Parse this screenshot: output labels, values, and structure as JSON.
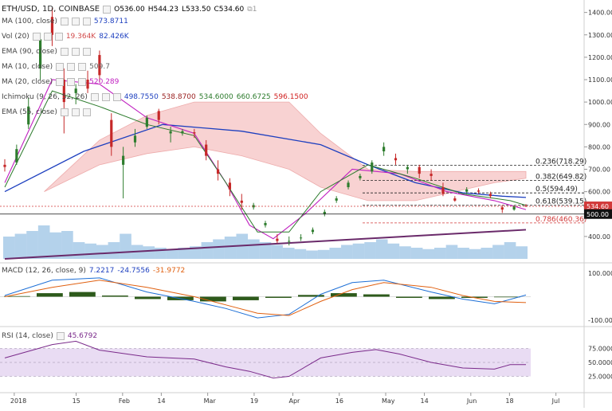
{
  "header": {
    "symbol": "ETH/USD, 1D, COINBASE",
    "open": "O536.00",
    "high": "H544.23",
    "low": "L533.50",
    "close": "C534.60"
  },
  "indicators": [
    {
      "label": "MA (100, close)",
      "values": [
        "573.8711"
      ],
      "colors": [
        "#1d3fbf"
      ]
    },
    {
      "label": "Vol (20)",
      "values": [
        "19.364K",
        "82.426K"
      ],
      "colors": [
        "#d24b4b",
        "#1d3fbf"
      ]
    },
    {
      "label": "EMA (90, close)",
      "values": [],
      "colors": []
    },
    {
      "label": "MA (10, close)",
      "values": [
        "509.7"
      ],
      "colors": [
        "#666666"
      ]
    },
    {
      "label": "MA (20, close)",
      "values": [
        "520.289"
      ],
      "colors": [
        "#c020c0"
      ]
    },
    {
      "label": "Ichimoku (9, 26, 52, 26)",
      "values": [
        "498.7550",
        "538.8700",
        "534.6000",
        "660.6725",
        "596.1500"
      ],
      "colors": [
        "#1d3fbf",
        "#9a2020",
        "#2b7a2b",
        "#2b7a2b",
        "#d02020"
      ]
    },
    {
      "label": "EMA (55, close)",
      "values": [],
      "colors": []
    }
  ],
  "macd": {
    "label": "MACD (12, 26, close, 9)",
    "values": [
      "7.2217",
      "-24.7556",
      "-31.9772"
    ],
    "colors": [
      "#1d3fbf",
      "#1d3fbf",
      "#e06010"
    ]
  },
  "rsi": {
    "label": "RSI (14, close)",
    "value": "45.6792",
    "color": "#7a2a8a"
  },
  "price_axis": [
    "1400.00",
    "1300.00",
    "1200.00",
    "1100.00",
    "1000.00",
    "900.00",
    "800.00",
    "700.00",
    "600.00",
    "500.00",
    "400.00"
  ],
  "macd_axis": [
    "100.0000",
    "-100.0000"
  ],
  "rsi_axis": [
    "75.0000",
    "50.0000",
    "25.0000"
  ],
  "time_axis": [
    "2018",
    "15",
    "Feb",
    "14",
    "Mar",
    "19",
    "Apr",
    "16",
    "May",
    "14",
    "Jun",
    "18",
    "Jul"
  ],
  "price_tags": [
    {
      "text": "534.60",
      "bg": "#d23a3a"
    },
    {
      "text": "500.00",
      "bg": "#111111"
    }
  ],
  "fib_labels": [
    {
      "text": "0.236(718.29)",
      "value": 718.29
    },
    {
      "text": "0.382(649.82)",
      "value": 649.82
    },
    {
      "text": "0.5(594.49)",
      "value": 594.49
    },
    {
      "text": "0.618(539.15)",
      "value": 539.15
    },
    {
      "text": "0.786(460.36)",
      "value": 460.36,
      "color": "#d23a3a"
    }
  ],
  "colors": {
    "bull": "#2e7d2e",
    "bear": "#c62828",
    "cloud_bull": "#b9e6b9",
    "cloud_bear": "#f6c4c4",
    "ma100": "#1d3fbf",
    "ma20": "#c020c0",
    "kijun": "#2b7a2b",
    "rsi": "#7a2a8a",
    "macd": "#1d6fd6",
    "signal": "#e06010",
    "hist": "#2d5a1b",
    "vol": "#6aa6d8"
  },
  "chart_data": {
    "type": "candlestick",
    "x_range": [
      "2017-12-28",
      "2018-06-19"
    ],
    "ylim": [
      300,
      1420
    ],
    "candles": [
      {
        "date": "2017-12-28",
        "o": 720,
        "h": 745,
        "l": 690,
        "c": 710
      },
      {
        "date": "2018-01-01",
        "o": 730,
        "h": 810,
        "l": 720,
        "c": 790
      },
      {
        "date": "2018-01-05",
        "o": 900,
        "h": 1020,
        "l": 880,
        "c": 980
      },
      {
        "date": "2018-01-09",
        "o": 1150,
        "h": 1310,
        "l": 1100,
        "c": 1280
      },
      {
        "date": "2018-01-13",
        "o": 1380,
        "h": 1420,
        "l": 1250,
        "c": 1300
      },
      {
        "date": "2018-01-17",
        "o": 1100,
        "h": 1150,
        "l": 860,
        "c": 1000
      },
      {
        "date": "2018-01-21",
        "o": 1040,
        "h": 1080,
        "l": 990,
        "c": 1060
      },
      {
        "date": "2018-01-25",
        "o": 1100,
        "h": 1140,
        "l": 1040,
        "c": 1060
      },
      {
        "date": "2018-01-29",
        "o": 1210,
        "h": 1230,
        "l": 1090,
        "c": 1120
      },
      {
        "date": "2018-02-02",
        "o": 920,
        "h": 950,
        "l": 760,
        "c": 800
      },
      {
        "date": "2018-02-06",
        "o": 720,
        "h": 800,
        "l": 570,
        "c": 760
      },
      {
        "date": "2018-02-10",
        "o": 820,
        "h": 880,
        "l": 800,
        "c": 850
      },
      {
        "date": "2018-02-14",
        "o": 890,
        "h": 940,
        "l": 880,
        "c": 930
      },
      {
        "date": "2018-02-18",
        "o": 960,
        "h": 970,
        "l": 900,
        "c": 920
      },
      {
        "date": "2018-02-22",
        "o": 860,
        "h": 890,
        "l": 820,
        "c": 870
      },
      {
        "date": "2018-02-26",
        "o": 860,
        "h": 880,
        "l": 850,
        "c": 870
      },
      {
        "date": "2018-03-02",
        "o": 865,
        "h": 880,
        "l": 840,
        "c": 860
      },
      {
        "date": "2018-03-06",
        "o": 810,
        "h": 830,
        "l": 740,
        "c": 760
      },
      {
        "date": "2018-03-10",
        "o": 700,
        "h": 740,
        "l": 650,
        "c": 680
      },
      {
        "date": "2018-03-14",
        "o": 640,
        "h": 660,
        "l": 580,
        "c": 610
      },
      {
        "date": "2018-03-18",
        "o": 560,
        "h": 590,
        "l": 520,
        "c": 550
      },
      {
        "date": "2018-03-22",
        "o": 530,
        "h": 550,
        "l": 520,
        "c": 540
      },
      {
        "date": "2018-03-26",
        "o": 450,
        "h": 470,
        "l": 440,
        "c": 460
      },
      {
        "date": "2018-03-30",
        "o": 390,
        "h": 410,
        "l": 370,
        "c": 380
      },
      {
        "date": "2018-04-03",
        "o": 380,
        "h": 400,
        "l": 360,
        "c": 380
      },
      {
        "date": "2018-04-07",
        "o": 395,
        "h": 410,
        "l": 380,
        "c": 395
      },
      {
        "date": "2018-04-11",
        "o": 420,
        "h": 440,
        "l": 410,
        "c": 430
      },
      {
        "date": "2018-04-15",
        "o": 500,
        "h": 520,
        "l": 490,
        "c": 510
      },
      {
        "date": "2018-04-19",
        "o": 560,
        "h": 580,
        "l": 550,
        "c": 570
      },
      {
        "date": "2018-04-23",
        "o": 620,
        "h": 650,
        "l": 610,
        "c": 640
      },
      {
        "date": "2018-04-27",
        "o": 660,
        "h": 680,
        "l": 650,
        "c": 670
      },
      {
        "date": "2018-05-01",
        "o": 690,
        "h": 740,
        "l": 680,
        "c": 730
      },
      {
        "date": "2018-05-05",
        "o": 780,
        "h": 820,
        "l": 760,
        "c": 800
      },
      {
        "date": "2018-05-09",
        "o": 750,
        "h": 770,
        "l": 720,
        "c": 740
      },
      {
        "date": "2018-05-13",
        "o": 700,
        "h": 720,
        "l": 680,
        "c": 710
      },
      {
        "date": "2018-05-17",
        "o": 710,
        "h": 720,
        "l": 660,
        "c": 680
      },
      {
        "date": "2018-05-21",
        "o": 680,
        "h": 700,
        "l": 650,
        "c": 670
      },
      {
        "date": "2018-05-25",
        "o": 620,
        "h": 640,
        "l": 580,
        "c": 590
      },
      {
        "date": "2018-05-29",
        "o": 570,
        "h": 580,
        "l": 555,
        "c": 560
      },
      {
        "date": "2018-06-02",
        "o": 600,
        "h": 620,
        "l": 590,
        "c": 610
      },
      {
        "date": "2018-06-06",
        "o": 605,
        "h": 615,
        "l": 590,
        "c": 600
      },
      {
        "date": "2018-06-10",
        "o": 590,
        "h": 600,
        "l": 570,
        "c": 580
      },
      {
        "date": "2018-06-14",
        "o": 530,
        "h": 540,
        "l": 505,
        "c": 520
      },
      {
        "date": "2018-06-18",
        "o": 520,
        "h": 540,
        "l": 515,
        "c": 535
      },
      {
        "date": "2018-06-19",
        "o": 536,
        "h": 544.23,
        "l": 533.5,
        "c": 534.6
      }
    ],
    "ma100": [
      [
        0,
        600
      ],
      [
        10,
        780
      ],
      [
        20,
        900
      ],
      [
        30,
        870
      ],
      [
        40,
        810
      ],
      [
        46,
        720
      ],
      [
        52,
        640
      ],
      [
        58,
        595
      ],
      [
        63,
        580
      ],
      [
        66,
        574
      ]
    ],
    "ma20": [
      [
        0,
        640
      ],
      [
        6,
        1100
      ],
      [
        12,
        1080
      ],
      [
        18,
        930
      ],
      [
        24,
        860
      ],
      [
        28,
        640
      ],
      [
        31,
        450
      ],
      [
        34,
        390
      ],
      [
        38,
        500
      ],
      [
        44,
        700
      ],
      [
        50,
        680
      ],
      [
        56,
        600
      ],
      [
        62,
        560
      ],
      [
        66,
        520
      ]
    ],
    "kijun": [
      [
        0,
        620
      ],
      [
        6,
        1050
      ],
      [
        12,
        980
      ],
      [
        18,
        900
      ],
      [
        24,
        850
      ],
      [
        28,
        640
      ],
      [
        32,
        420
      ],
      [
        36,
        420
      ],
      [
        40,
        600
      ],
      [
        46,
        720
      ],
      [
        52,
        660
      ],
      [
        58,
        590
      ],
      [
        64,
        560
      ],
      [
        66,
        539
      ]
    ],
    "cloud_top": [
      [
        5,
        600
      ],
      [
        12,
        830
      ],
      [
        18,
        940
      ],
      [
        24,
        1000
      ],
      [
        30,
        1000
      ],
      [
        36,
        1000
      ],
      [
        40,
        860
      ],
      [
        46,
        700
      ],
      [
        52,
        690
      ],
      [
        57,
        690
      ],
      [
        62,
        690
      ],
      [
        66,
        690
      ]
    ],
    "cloud_bottom": [
      [
        5,
        600
      ],
      [
        12,
        720
      ],
      [
        18,
        770
      ],
      [
        24,
        800
      ],
      [
        30,
        760
      ],
      [
        36,
        700
      ],
      [
        40,
        620
      ],
      [
        46,
        560
      ],
      [
        52,
        560
      ],
      [
        57,
        600
      ],
      [
        62,
        640
      ],
      [
        66,
        660
      ]
    ],
    "support_line": [
      [
        0,
        300
      ],
      [
        66,
        430
      ]
    ],
    "volume": [
      80,
      90,
      100,
      120,
      95,
      100,
      60,
      55,
      50,
      60,
      90,
      50,
      45,
      40,
      35,
      40,
      45,
      60,
      70,
      80,
      90,
      70,
      60,
      50,
      40,
      35,
      30,
      32,
      40,
      50,
      55,
      60,
      70,
      55,
      45,
      40,
      35,
      40,
      50,
      40,
      35,
      40,
      50,
      60,
      45
    ],
    "macd_line": [
      [
        0,
        5
      ],
      [
        6,
        70
      ],
      [
        12,
        80
      ],
      [
        18,
        20
      ],
      [
        24,
        -20
      ],
      [
        28,
        -50
      ],
      [
        32,
        -90
      ],
      [
        36,
        -75
      ],
      [
        40,
        10
      ],
      [
        44,
        60
      ],
      [
        48,
        70
      ],
      [
        54,
        20
      ],
      [
        58,
        -10
      ],
      [
        62,
        -30
      ],
      [
        66,
        7
      ]
    ],
    "signal_line": [
      [
        0,
        0
      ],
      [
        6,
        40
      ],
      [
        12,
        70
      ],
      [
        18,
        40
      ],
      [
        24,
        0
      ],
      [
        28,
        -35
      ],
      [
        32,
        -70
      ],
      [
        36,
        -80
      ],
      [
        40,
        -20
      ],
      [
        44,
        30
      ],
      [
        48,
        60
      ],
      [
        54,
        40
      ],
      [
        58,
        5
      ],
      [
        62,
        -20
      ],
      [
        66,
        -25
      ]
    ],
    "histogram": [
      5,
      30,
      40,
      10,
      -20,
      -30,
      -40,
      -30,
      -10,
      15,
      30,
      20,
      -10,
      -20,
      -10,
      -5
    ],
    "rsi": [
      [
        0,
        58
      ],
      [
        6,
        82
      ],
      [
        9,
        88
      ],
      [
        12,
        72
      ],
      [
        18,
        60
      ],
      [
        24,
        56
      ],
      [
        28,
        42
      ],
      [
        31,
        34
      ],
      [
        34,
        22
      ],
      [
        36,
        25
      ],
      [
        40,
        58
      ],
      [
        44,
        68
      ],
      [
        47,
        73
      ],
      [
        50,
        65
      ],
      [
        54,
        50
      ],
      [
        58,
        40
      ],
      [
        62,
        38
      ],
      [
        64,
        46
      ],
      [
        66,
        46
      ]
    ],
    "rsi_range": [
      0,
      100
    ]
  }
}
